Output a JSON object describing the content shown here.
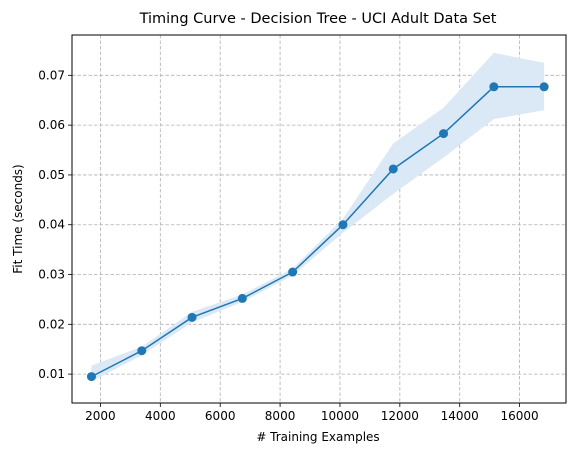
{
  "chart_data": {
    "type": "line",
    "title": "Timing Curve - Decision Tree - UCI Adult Data Set",
    "xlabel": "# Training Examples",
    "ylabel": "Fit Time (seconds)",
    "xlim": [
      1050,
      17550
    ],
    "ylim": [
      0.0042,
      0.0781
    ],
    "xticks": [
      2000,
      4000,
      6000,
      8000,
      10000,
      12000,
      14000,
      16000
    ],
    "yticks": [
      0.01,
      0.02,
      0.03,
      0.04,
      0.05,
      0.06,
      0.07
    ],
    "ytick_labels": [
      "0.01",
      "0.02",
      "0.03",
      "0.04",
      "0.05",
      "0.06",
      "0.07"
    ],
    "grid": true,
    "series": [
      {
        "x": [
          1700,
          3380,
          5060,
          6740,
          8420,
          10100,
          11780,
          13460,
          15140,
          16820
        ],
        "values": [
          0.0095,
          0.0147,
          0.0214,
          0.0252,
          0.0305,
          0.04,
          0.0512,
          0.0583,
          0.0677,
          0.0677
        ],
        "lower": [
          0.0085,
          0.0138,
          0.0204,
          0.0245,
          0.0298,
          0.0384,
          0.0462,
          0.0535,
          0.0612,
          0.063
        ],
        "upper": [
          0.0117,
          0.0155,
          0.0225,
          0.026,
          0.0312,
          0.0412,
          0.0563,
          0.0635,
          0.0745,
          0.0725
        ],
        "color": "#1f77b4",
        "band_color": "#dbe8f6"
      }
    ]
  }
}
